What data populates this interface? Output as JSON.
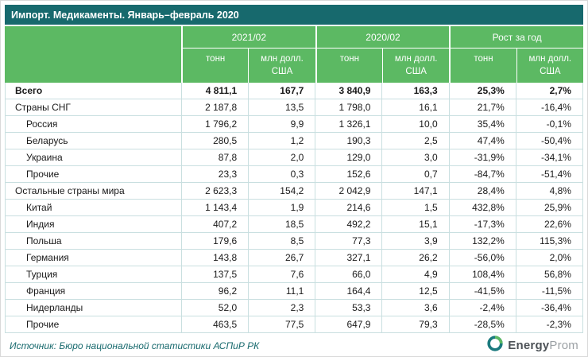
{
  "title": "Импорт. Медикаменты. Январь–февраль 2020",
  "colors": {
    "title_bg": "#17696d",
    "header_bg": "#5cb963",
    "grid_border": "#c9dfe0",
    "source_text": "#17696d",
    "logo_teal": "#1b7a7e",
    "logo_green": "#5cb963"
  },
  "table": {
    "column_groups": [
      {
        "label": "2021/02",
        "subcolumns": [
          "тонн",
          "млн долл. США"
        ]
      },
      {
        "label": "2020/02",
        "subcolumns": [
          "тонн",
          "млн долл. США"
        ]
      },
      {
        "label": "Рост за год",
        "subcolumns": [
          "тонн",
          "млн долл. США"
        ]
      }
    ],
    "rows": [
      {
        "name": "Всего",
        "style": "total",
        "values": [
          "4 811,1",
          "167,7",
          "3 840,9",
          "163,3",
          "25,3%",
          "2,7%"
        ]
      },
      {
        "name": "Страны СНГ",
        "style": "group",
        "values": [
          "2 187,8",
          "13,5",
          "1 798,0",
          "16,1",
          "21,7%",
          "-16,4%"
        ]
      },
      {
        "name": "Россия",
        "style": "item",
        "values": [
          "1 796,2",
          "9,9",
          "1 326,1",
          "10,0",
          "35,4%",
          "-0,1%"
        ]
      },
      {
        "name": "Беларусь",
        "style": "item",
        "values": [
          "280,5",
          "1,2",
          "190,3",
          "2,5",
          "47,4%",
          "-50,4%"
        ]
      },
      {
        "name": "Украина",
        "style": "item",
        "values": [
          "87,8",
          "2,0",
          "129,0",
          "3,0",
          "-31,9%",
          "-34,1%"
        ]
      },
      {
        "name": "Прочие",
        "style": "item",
        "values": [
          "23,3",
          "0,3",
          "152,6",
          "0,7",
          "-84,7%",
          "-51,4%"
        ]
      },
      {
        "name": "Остальные страны мира",
        "style": "group",
        "values": [
          "2 623,3",
          "154,2",
          "2 042,9",
          "147,1",
          "28,4%",
          "4,8%"
        ]
      },
      {
        "name": "Китай",
        "style": "item",
        "values": [
          "1 143,4",
          "1,9",
          "214,6",
          "1,5",
          "432,8%",
          "25,9%"
        ]
      },
      {
        "name": "Индия",
        "style": "item",
        "values": [
          "407,2",
          "18,5",
          "492,2",
          "15,1",
          "-17,3%",
          "22,6%"
        ]
      },
      {
        "name": "Польша",
        "style": "item",
        "values": [
          "179,6",
          "8,5",
          "77,3",
          "3,9",
          "132,2%",
          "115,3%"
        ]
      },
      {
        "name": "Германия",
        "style": "item",
        "values": [
          "143,8",
          "26,7",
          "327,1",
          "26,2",
          "-56,0%",
          "2,0%"
        ]
      },
      {
        "name": "Турция",
        "style": "item",
        "values": [
          "137,5",
          "7,6",
          "66,0",
          "4,9",
          "108,4%",
          "56,8%"
        ]
      },
      {
        "name": "Франция",
        "style": "item",
        "values": [
          "96,2",
          "11,1",
          "164,4",
          "12,5",
          "-41,5%",
          "-11,5%"
        ]
      },
      {
        "name": "Нидерланды",
        "style": "item",
        "values": [
          "52,0",
          "2,3",
          "53,3",
          "3,6",
          "-2,4%",
          "-36,4%"
        ]
      },
      {
        "name": "Прочие",
        "style": "item",
        "values": [
          "463,5",
          "77,5",
          "647,9",
          "79,3",
          "-28,5%",
          "-2,3%"
        ]
      }
    ]
  },
  "chart_data": {
    "type": "table",
    "title": "Импорт. Медикаменты. Январь–февраль 2020",
    "columns": [
      "",
      "2021/02 тонн",
      "2021/02 млн долл. США",
      "2020/02 тонн",
      "2020/02 млн долл. США",
      "Рост за год тонн (%)",
      "Рост за год млн долл. США (%)"
    ],
    "rows": [
      [
        "Всего",
        4811.1,
        167.7,
        3840.9,
        163.3,
        25.3,
        2.7
      ],
      [
        "Страны СНГ",
        2187.8,
        13.5,
        1798.0,
        16.1,
        21.7,
        -16.4
      ],
      [
        "Россия",
        1796.2,
        9.9,
        1326.1,
        10.0,
        35.4,
        -0.1
      ],
      [
        "Беларусь",
        280.5,
        1.2,
        190.3,
        2.5,
        47.4,
        -50.4
      ],
      [
        "Украина",
        87.8,
        2.0,
        129.0,
        3.0,
        -31.9,
        -34.1
      ],
      [
        "Прочие",
        23.3,
        0.3,
        152.6,
        0.7,
        -84.7,
        -51.4
      ],
      [
        "Остальные страны мира",
        2623.3,
        154.2,
        2042.9,
        147.1,
        28.4,
        4.8
      ],
      [
        "Китай",
        1143.4,
        1.9,
        214.6,
        1.5,
        432.8,
        25.9
      ],
      [
        "Индия",
        407.2,
        18.5,
        492.2,
        15.1,
        -17.3,
        22.6
      ],
      [
        "Польша",
        179.6,
        8.5,
        77.3,
        3.9,
        132.2,
        115.3
      ],
      [
        "Германия",
        143.8,
        26.7,
        327.1,
        26.2,
        -56.0,
        2.0
      ],
      [
        "Турция",
        137.5,
        7.6,
        66.0,
        4.9,
        108.4,
        56.8
      ],
      [
        "Франция",
        96.2,
        11.1,
        164.4,
        12.5,
        -41.5,
        -11.5
      ],
      [
        "Нидерланды",
        52.0,
        2.3,
        53.3,
        3.6,
        -2.4,
        -36.4
      ],
      [
        "Прочие",
        463.5,
        77.5,
        647.9,
        79.3,
        -28.5,
        -2.3
      ]
    ]
  },
  "footer": {
    "source": "Источник: Бюро национальной статистики АСПиР РК",
    "logo": {
      "part1": "Energy",
      "part2": "Prom"
    }
  }
}
